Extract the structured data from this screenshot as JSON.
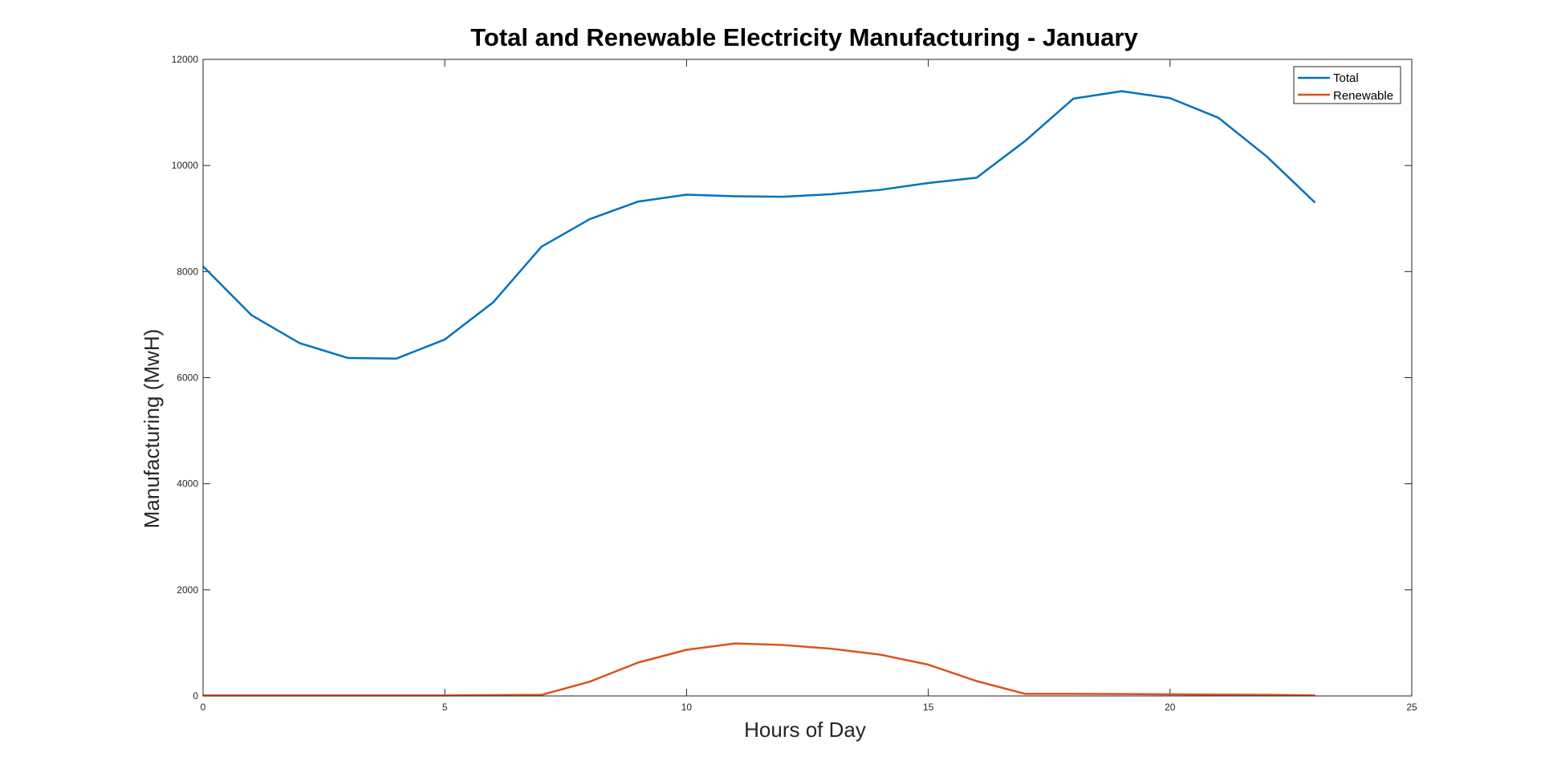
{
  "chart_data": {
    "type": "line",
    "title": "Total and Renewable Electricity Manufacturing - January",
    "xlabel": "Hours of Day",
    "ylabel": "Manufacturing (MwH)",
    "xlim": [
      0,
      25
    ],
    "ylim": [
      0,
      12000
    ],
    "xticks": [
      0,
      5,
      10,
      15,
      20,
      25
    ],
    "yticks": [
      0,
      2000,
      4000,
      6000,
      8000,
      10000,
      12000
    ],
    "grid": false,
    "legend_position": "top-right",
    "x": [
      0,
      1,
      2,
      3,
      4,
      5,
      6,
      7,
      8,
      9,
      10,
      11,
      12,
      13,
      14,
      15,
      16,
      17,
      18,
      19,
      20,
      21,
      22,
      23
    ],
    "series": [
      {
        "name": "Total",
        "color": "#0072BD",
        "values": [
          8100,
          7180,
          6650,
          6370,
          6360,
          6720,
          7420,
          8470,
          8990,
          9320,
          9450,
          9420,
          9410,
          9460,
          9540,
          9670,
          9770,
          10460,
          11260,
          11400,
          11270,
          10900,
          10170,
          9300
        ]
      },
      {
        "name": "Renewable",
        "color": "#D95319",
        "values": [
          10,
          10,
          10,
          10,
          10,
          10,
          15,
          20,
          270,
          630,
          870,
          990,
          960,
          890,
          780,
          590,
          280,
          40,
          40,
          35,
          30,
          25,
          20,
          10
        ]
      }
    ]
  }
}
